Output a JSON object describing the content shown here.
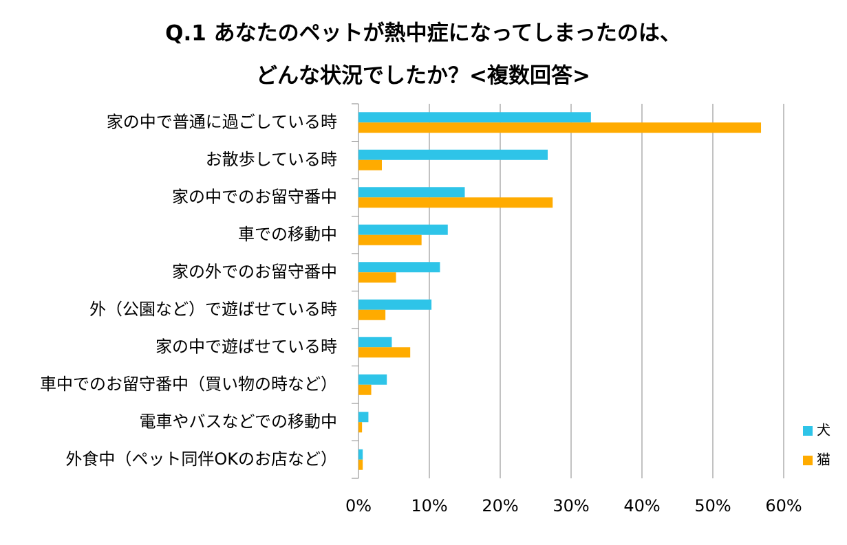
{
  "chart_data": {
    "type": "hbar",
    "title": [
      "Q.1 あなたのペットが熱中症になってしまったのは、",
      "どんな状況でしたか？<複数回答>"
    ],
    "categories": [
      "家の中で普通に過ごしている時",
      "お散歩している時",
      "家の中でのお留守番中",
      "車での移動中",
      "家の外でのお留守番中",
      "外（公園など）で遊ばせている時",
      "家の中で遊ばせている時",
      "車中でのお留守番中（買い物の時など）",
      "電車やバスなどでの移動中",
      "外食中（ペット同伴OKのお店など）"
    ],
    "series": [
      {
        "name": "犬",
        "color": "#2ec4e8",
        "values": [
          32.8,
          26.7,
          15.0,
          12.6,
          11.5,
          10.3,
          4.7,
          4.0,
          1.4,
          0.6
        ]
      },
      {
        "name": "猫",
        "color": "#ffab00",
        "values": [
          56.8,
          3.3,
          27.4,
          8.9,
          5.3,
          3.8,
          7.3,
          1.8,
          0.5,
          0.6
        ]
      }
    ],
    "xlim": [
      0,
      60
    ],
    "xticks": [
      {
        "value": 0,
        "label": "0%"
      },
      {
        "value": 10,
        "label": "10%"
      },
      {
        "value": 20,
        "label": "20%"
      },
      {
        "value": 30,
        "label": "30%"
      },
      {
        "value": 40,
        "label": "40%"
      },
      {
        "value": 50,
        "label": "50%"
      },
      {
        "value": 60,
        "label": "60%"
      }
    ],
    "grid": true,
    "legend": "right"
  }
}
